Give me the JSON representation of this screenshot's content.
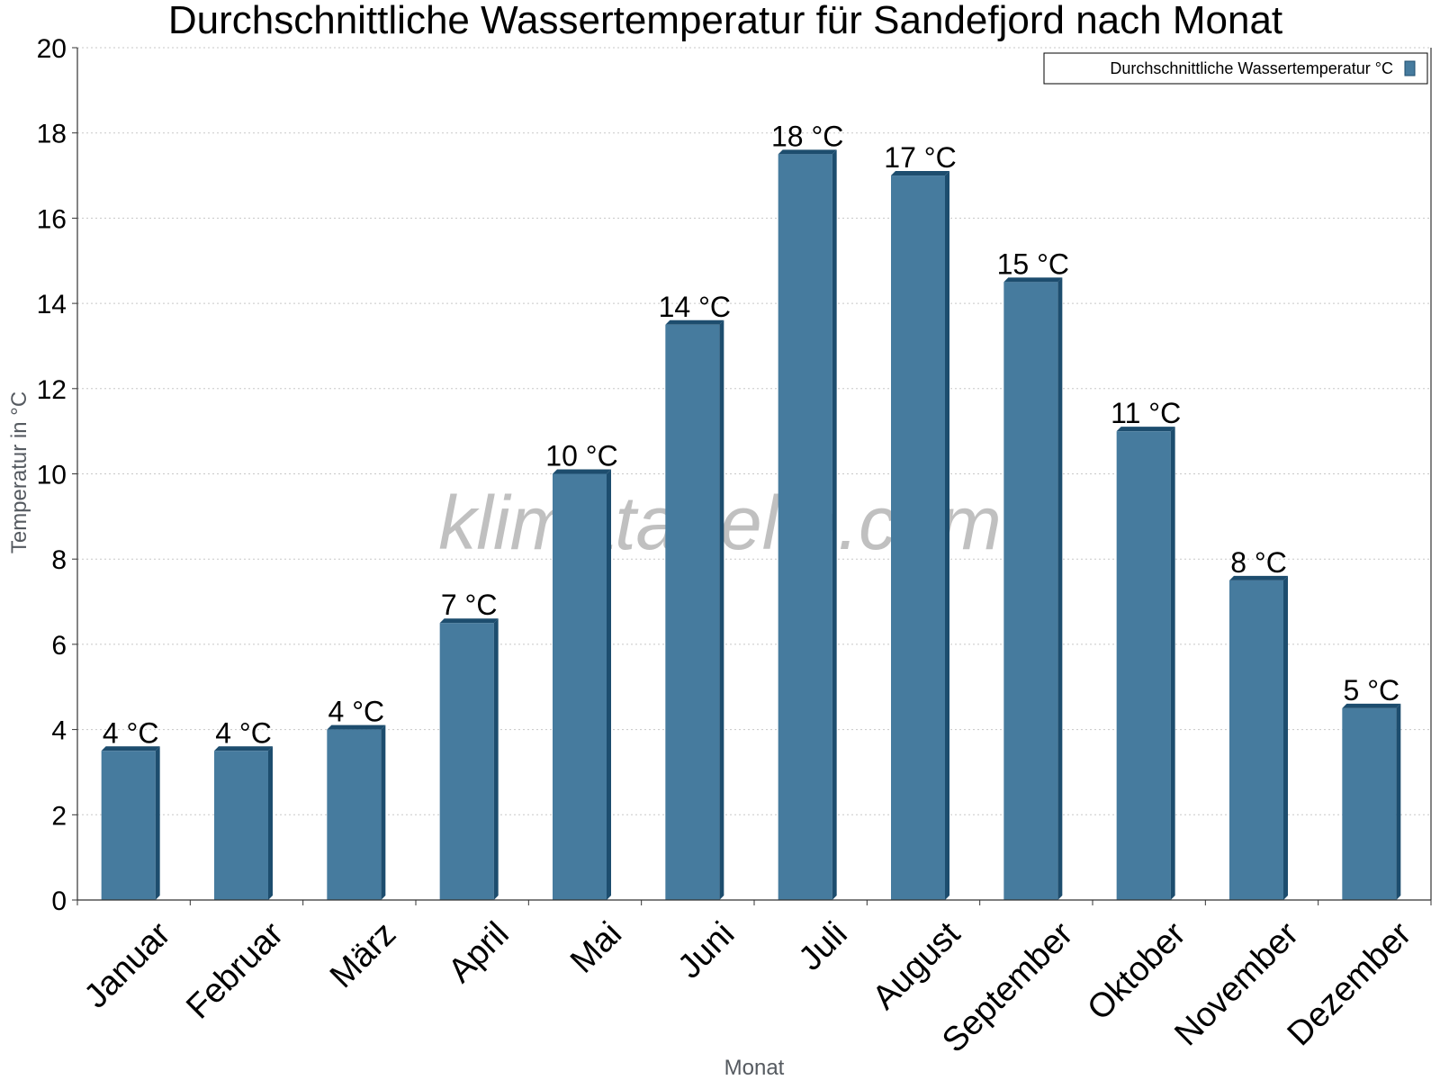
{
  "chart_data": {
    "type": "bar",
    "title": "Durchschnittliche Wassertemperatur für Sandefjord nach Monat",
    "xlabel": "Monat",
    "ylabel": "Temperatur in °C",
    "categories": [
      "Januar",
      "Februar",
      "März",
      "April",
      "Mai",
      "Juni",
      "Juli",
      "August",
      "September",
      "Oktober",
      "November",
      "Dezember"
    ],
    "series": [
      {
        "name": "Durchschnittliche Wassertemperatur °C",
        "values": [
          3.5,
          3.5,
          4,
          6.5,
          10,
          13.5,
          17.5,
          17,
          14.5,
          11,
          7.5,
          4.5
        ],
        "labels": [
          "4 °C",
          "4 °C",
          "4 °C",
          "7 °C",
          "10 °C",
          "14 °C",
          "18 °C",
          "17 °C",
          "15 °C",
          "11 °C",
          "8 °C",
          "5 °C"
        ],
        "color": "#467b9e"
      }
    ],
    "ylim": [
      0,
      20
    ],
    "yticks": [
      0,
      2,
      4,
      6,
      8,
      10,
      12,
      14,
      16,
      18,
      20
    ],
    "grid": true,
    "legend_position": "top-right",
    "watermark": "klimatabelle.com",
    "colors": {
      "bar_front": "#467b9e",
      "bar_side": "#1d4d6e",
      "gridline": "#c8c8c8",
      "axis": "#333333"
    }
  }
}
